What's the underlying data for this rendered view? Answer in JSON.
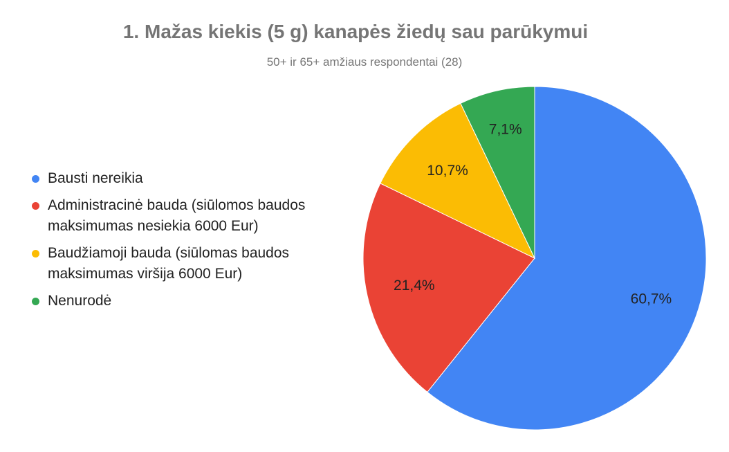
{
  "chart_data": {
    "type": "pie",
    "title": "1. Mažas kiekis (5 g) kanapės žiedų sau parūkymui",
    "subtitle": "50+ ir 65+ amžiaus respondentai (28)",
    "legend_position": "left",
    "slices": [
      {
        "name": "Bausti nereikia",
        "value": 60.7,
        "label": "60,7%",
        "color": "#4285F4"
      },
      {
        "name": "Administracinė bauda (siūlomos baudos\nmaksimumas nesiekia 6000 Eur)",
        "value": 21.4,
        "label": "21,4%",
        "color": "#EA4335"
      },
      {
        "name": "Baudžiamoji bauda (siūlomas baudos\nmaksimumas viršija 6000 Eur)",
        "value": 10.7,
        "label": "10,7%",
        "color": "#FBBC04"
      },
      {
        "name": "Nenurodė",
        "value": 7.1,
        "label": "7,1%",
        "color": "#34A853"
      }
    ]
  }
}
